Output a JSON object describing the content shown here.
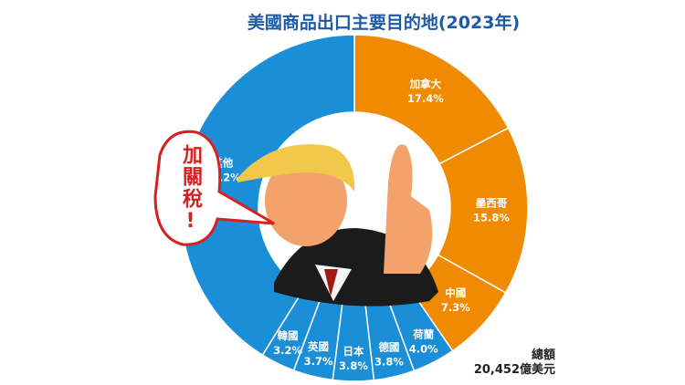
{
  "chart_data": {
    "type": "pie",
    "title": "美國商品出口主要目的地(2023年)",
    "categories": [
      "加拿大",
      "墨西哥",
      "中國",
      "荷蘭",
      "德國",
      "日本",
      "英國",
      "韓國",
      "其他"
    ],
    "values": [
      17.4,
      15.8,
      7.3,
      4.0,
      3.8,
      3.8,
      3.7,
      3.2,
      41.2
    ],
    "labels": [
      "17.4%",
      "15.8%",
      "7.3%",
      "4.0%",
      "3.8%",
      "3.8%",
      "3.7%",
      "3.2%",
      "41.2%"
    ],
    "colors": [
      "#f08a00",
      "#f08a00",
      "#f08a00",
      "#1a8fd8",
      "#1a8fd8",
      "#1a8fd8",
      "#1a8fd8",
      "#1a8fd8",
      "#1a8fd8"
    ],
    "unit": "%",
    "donut": true
  },
  "total": {
    "label": "總額",
    "value": "20,452億美元"
  },
  "bubble": {
    "text": "加關稅!"
  }
}
